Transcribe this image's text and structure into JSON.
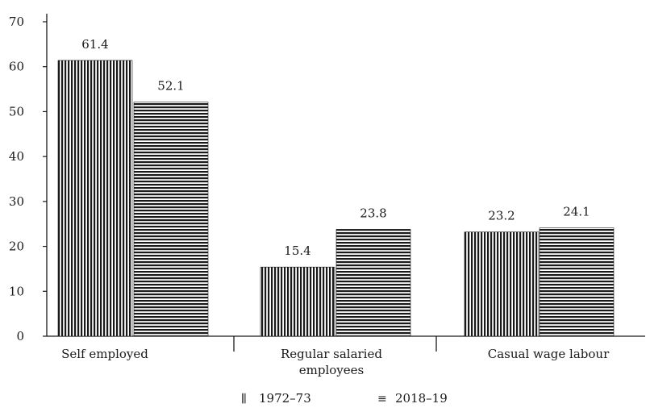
{
  "chart_data": {
    "type": "bar",
    "title": "",
    "xlabel": "",
    "ylabel": "",
    "ylim": [
      0,
      70
    ],
    "yticks": [
      0,
      10,
      20,
      30,
      40,
      50,
      60,
      70
    ],
    "categories": [
      "Self employed",
      "Regular salaried employees",
      "Casual wage labour"
    ],
    "category_label_lines": [
      [
        "Self employed"
      ],
      [
        "Regular salaried",
        "employees"
      ],
      [
        "Casual wage labour"
      ]
    ],
    "series": [
      {
        "name": "1972–73",
        "pattern": "vertical-lines",
        "legend_symbol": "⫼",
        "values": [
          61.4,
          15.4,
          23.2
        ],
        "labels": [
          "61.4",
          "15.4",
          "23.2"
        ]
      },
      {
        "name": "2018–19",
        "pattern": "horizontal-lines",
        "legend_symbol": "≡",
        "values": [
          52.1,
          23.8,
          24.1
        ],
        "labels": [
          "52.1",
          "23.8",
          "24.1"
        ]
      }
    ],
    "grid": false,
    "legend_position": "bottom-center",
    "colors": {
      "ink": "#1a1a1a",
      "background": "#ffffff"
    }
  }
}
